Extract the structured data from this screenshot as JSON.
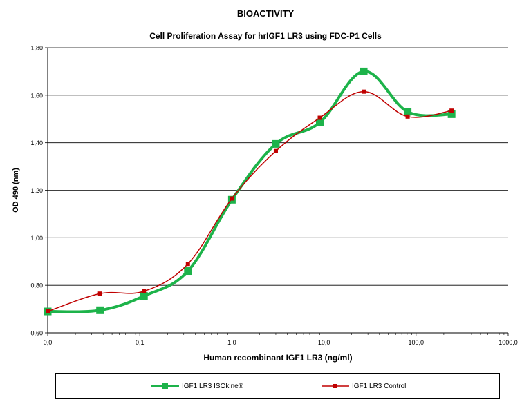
{
  "heading": "BIOACTIVITY",
  "chart_data": {
    "type": "line",
    "title": "Cell Proliferation Assay for hrIGF1 LR3 using FDC-P1 Cells",
    "xlabel": "Human recombinant IGF1 LR3 (ng/ml)",
    "ylabel": "OD 490 (nm)",
    "x_scale": "log",
    "x_tick_labels": [
      "0,0",
      "0,1",
      "1,0",
      "10,0",
      "100,0",
      "1000,0"
    ],
    "x_tick_values": [
      0.01,
      0.1,
      1,
      10,
      100,
      1000
    ],
    "y_tick_labels": [
      "0,60",
      "0,80",
      "1,00",
      "1,20",
      "1,40",
      "1,60",
      "1,80"
    ],
    "ylim": [
      0.6,
      1.8
    ],
    "grid": "horizontal",
    "legend_position": "bottom",
    "series": [
      {
        "name": "IGF1 LR3 ISOkine®",
        "color": "#1db34a",
        "marker": "square",
        "x": [
          0.01,
          0.037,
          0.111,
          0.333,
          1.0,
          3.0,
          9.0,
          27.0,
          81.0,
          243.0
        ],
        "y": [
          0.69,
          0.695,
          0.755,
          0.86,
          1.16,
          1.395,
          1.485,
          1.7,
          1.53,
          1.52
        ]
      },
      {
        "name": "IGF1 LR3 Control",
        "color": "#c00000",
        "marker": "square",
        "x": [
          0.01,
          0.037,
          0.111,
          0.333,
          1.0,
          3.0,
          9.0,
          27.0,
          81.0,
          243.0
        ],
        "y": [
          0.69,
          0.765,
          0.775,
          0.89,
          1.165,
          1.365,
          1.505,
          1.615,
          1.51,
          1.535
        ]
      }
    ]
  }
}
